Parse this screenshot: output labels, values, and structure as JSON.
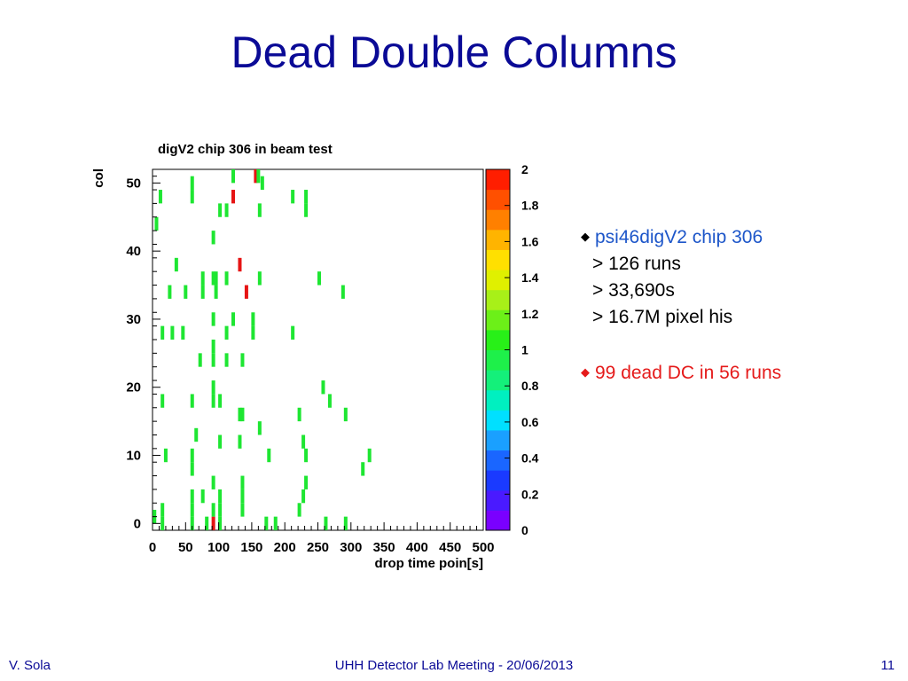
{
  "slide": {
    "title": "Dead Double Columns",
    "footer_left": "V. Sola",
    "footer_center": "UHH Detector Lab Meeting - 20/06/2013",
    "page_number": "11"
  },
  "bullets": {
    "first_head": "psi46digV2 chip 306",
    "first_lines": [
      "> 126 runs",
      "> 33,690s",
      "> 16.7M pixel his"
    ],
    "second": "99 dead DC in 56 runs",
    "first_color": "#1d56c9",
    "second_color": "#e51a1a"
  },
  "chart_data": {
    "type": "heatmap",
    "title": "digV2 chip 306 in beam test",
    "xlabel": "drop time poin[s]",
    "ylabel": "col",
    "xlim": [
      0,
      500
    ],
    "ylim": [
      -1,
      52
    ],
    "x_ticks": [
      0,
      50,
      100,
      150,
      200,
      250,
      300,
      350,
      400,
      450,
      500
    ],
    "y_ticks": [
      0,
      10,
      20,
      30,
      40,
      50
    ],
    "z_range": [
      0,
      2
    ],
    "z_ticks": [
      "0",
      "0.2",
      "0.4",
      "0.6",
      "0.8",
      "1",
      "1.2",
      "1.4",
      "1.6",
      "1.8",
      "2"
    ],
    "colorbar_colors": [
      "#7a00ff",
      "#4a1aff",
      "#1a3aff",
      "#1a66ff",
      "#1aa0ff",
      "#00e0ff",
      "#00f0c0",
      "#14f07a",
      "#1ef04a",
      "#28f018",
      "#6cf018",
      "#a8f018",
      "#e0f000",
      "#ffe000",
      "#ffb400",
      "#ff8000",
      "#ff5000",
      "#ff1e00"
    ],
    "green_color": "#1ee632",
    "red_color": "#e61414",
    "cells": [
      {
        "x": 3,
        "y": 1,
        "v": 1
      },
      {
        "x": 15,
        "y": 0,
        "v": 1
      },
      {
        "x": 60,
        "y": 0,
        "v": 1
      },
      {
        "x": 82,
        "y": 0,
        "v": 1
      },
      {
        "x": 92,
        "y": 0,
        "v": 2
      },
      {
        "x": 102,
        "y": 0,
        "v": 1
      },
      {
        "x": 172,
        "y": 0,
        "v": 1
      },
      {
        "x": 186,
        "y": 0,
        "v": 1
      },
      {
        "x": 262,
        "y": 0,
        "v": 1
      },
      {
        "x": 292,
        "y": 0,
        "v": 1
      },
      {
        "x": 15,
        "y": 2,
        "v": 1
      },
      {
        "x": 60,
        "y": 2,
        "v": 1
      },
      {
        "x": 92,
        "y": 2,
        "v": 1
      },
      {
        "x": 102,
        "y": 2,
        "v": 1
      },
      {
        "x": 136,
        "y": 2,
        "v": 1
      },
      {
        "x": 222,
        "y": 2,
        "v": 1
      },
      {
        "x": 60,
        "y": 4,
        "v": 1
      },
      {
        "x": 76,
        "y": 4,
        "v": 1
      },
      {
        "x": 102,
        "y": 4,
        "v": 1
      },
      {
        "x": 136,
        "y": 4,
        "v": 1
      },
      {
        "x": 228,
        "y": 4,
        "v": 1
      },
      {
        "x": 92,
        "y": 6,
        "v": 1
      },
      {
        "x": 136,
        "y": 6,
        "v": 1
      },
      {
        "x": 232,
        "y": 6,
        "v": 1
      },
      {
        "x": 60,
        "y": 8,
        "v": 1
      },
      {
        "x": 318,
        "y": 8,
        "v": 1
      },
      {
        "x": 60,
        "y": 10,
        "v": 1
      },
      {
        "x": 20,
        "y": 10,
        "v": 1
      },
      {
        "x": 176,
        "y": 10,
        "v": 1
      },
      {
        "x": 232,
        "y": 10,
        "v": 1
      },
      {
        "x": 328,
        "y": 10,
        "v": 1
      },
      {
        "x": 102,
        "y": 12,
        "v": 1
      },
      {
        "x": 132,
        "y": 12,
        "v": 1
      },
      {
        "x": 228,
        "y": 12,
        "v": 1
      },
      {
        "x": 66,
        "y": 13,
        "v": 1
      },
      {
        "x": 162,
        "y": 14,
        "v": 1
      },
      {
        "x": 132,
        "y": 16,
        "v": 1
      },
      {
        "x": 136,
        "y": 16,
        "v": 1
      },
      {
        "x": 222,
        "y": 16,
        "v": 1
      },
      {
        "x": 292,
        "y": 16,
        "v": 1
      },
      {
        "x": 15,
        "y": 18,
        "v": 1
      },
      {
        "x": 60,
        "y": 18,
        "v": 1
      },
      {
        "x": 92,
        "y": 18,
        "v": 1
      },
      {
        "x": 102,
        "y": 18,
        "v": 1
      },
      {
        "x": 268,
        "y": 18,
        "v": 1
      },
      {
        "x": 92,
        "y": 20,
        "v": 1
      },
      {
        "x": 258,
        "y": 20,
        "v": 1
      },
      {
        "x": 72,
        "y": 24,
        "v": 1
      },
      {
        "x": 92,
        "y": 24,
        "v": 1
      },
      {
        "x": 112,
        "y": 24,
        "v": 1
      },
      {
        "x": 136,
        "y": 24,
        "v": 1
      },
      {
        "x": 92,
        "y": 26,
        "v": 1
      },
      {
        "x": 15,
        "y": 28,
        "v": 1
      },
      {
        "x": 30,
        "y": 28,
        "v": 1
      },
      {
        "x": 46,
        "y": 28,
        "v": 1
      },
      {
        "x": 112,
        "y": 28,
        "v": 1
      },
      {
        "x": 152,
        "y": 28,
        "v": 1
      },
      {
        "x": 212,
        "y": 28,
        "v": 1
      },
      {
        "x": 92,
        "y": 30,
        "v": 1
      },
      {
        "x": 122,
        "y": 30,
        "v": 1
      },
      {
        "x": 152,
        "y": 30,
        "v": 1
      },
      {
        "x": 26,
        "y": 34,
        "v": 1
      },
      {
        "x": 50,
        "y": 34,
        "v": 1
      },
      {
        "x": 76,
        "y": 34,
        "v": 1
      },
      {
        "x": 96,
        "y": 34,
        "v": 1
      },
      {
        "x": 142,
        "y": 34,
        "v": 2
      },
      {
        "x": 288,
        "y": 34,
        "v": 1
      },
      {
        "x": 76,
        "y": 36,
        "v": 1
      },
      {
        "x": 92,
        "y": 36,
        "v": 1
      },
      {
        "x": 96,
        "y": 36,
        "v": 1
      },
      {
        "x": 112,
        "y": 36,
        "v": 1
      },
      {
        "x": 162,
        "y": 36,
        "v": 1
      },
      {
        "x": 252,
        "y": 36,
        "v": 1
      },
      {
        "x": 36,
        "y": 38,
        "v": 1
      },
      {
        "x": 132,
        "y": 38,
        "v": 2
      },
      {
        "x": 92,
        "y": 42,
        "v": 1
      },
      {
        "x": 6,
        "y": 44,
        "v": 1
      },
      {
        "x": 102,
        "y": 46,
        "v": 1
      },
      {
        "x": 112,
        "y": 46,
        "v": 1
      },
      {
        "x": 162,
        "y": 46,
        "v": 1
      },
      {
        "x": 232,
        "y": 46,
        "v": 1
      },
      {
        "x": 12,
        "y": 48,
        "v": 1
      },
      {
        "x": 60,
        "y": 48,
        "v": 1
      },
      {
        "x": 122,
        "y": 48,
        "v": 2
      },
      {
        "x": 212,
        "y": 48,
        "v": 1
      },
      {
        "x": 232,
        "y": 48,
        "v": 1
      },
      {
        "x": 60,
        "y": 50,
        "v": 1
      },
      {
        "x": 166,
        "y": 50,
        "v": 1
      },
      {
        "x": 122,
        "y": 51,
        "v": 1
      },
      {
        "x": 156,
        "y": 51,
        "v": 2
      },
      {
        "x": 160,
        "y": 51,
        "v": 1
      }
    ]
  }
}
